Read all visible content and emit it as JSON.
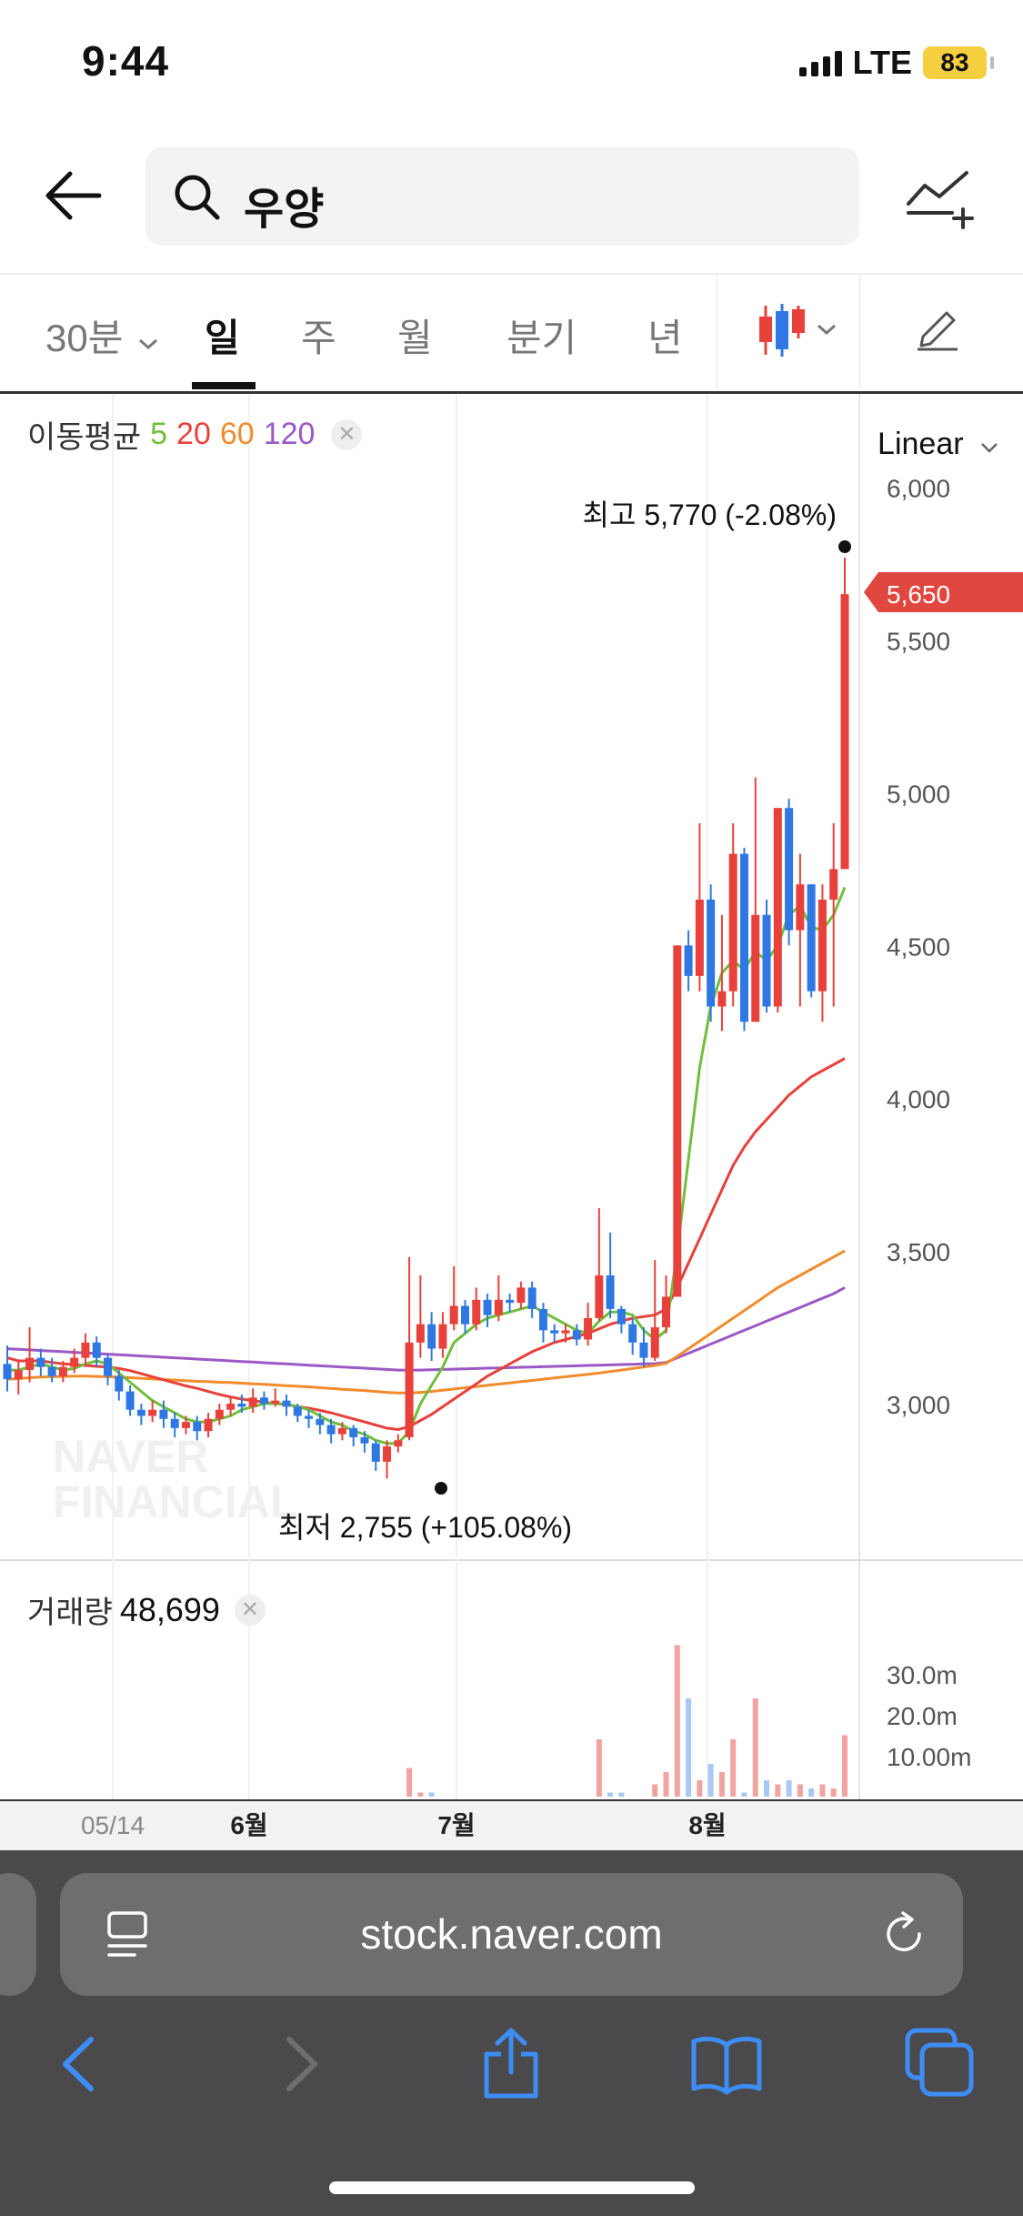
{
  "status": {
    "time": "9:44",
    "network": "LTE",
    "battery": "83"
  },
  "header": {
    "search_text": "우양"
  },
  "tabs": [
    "30분",
    "일",
    "주",
    "월",
    "분기",
    "년"
  ],
  "active_tab": "일",
  "chart": {
    "ma_label": "이동평균",
    "ma_periods": [
      "5",
      "20",
      "60",
      "120"
    ],
    "scale_label": "Linear",
    "high_label": "최고",
    "high_value": "5,770 (-2.08%)",
    "low_label": "최저",
    "low_value": "2,755 (+105.08%)",
    "current_price": "5,650",
    "volume_label": "거래량",
    "volume_value": "48,699",
    "watermark_line1": "NAVER",
    "watermark_line2": "FINANCIAL",
    "y_ticks": [
      "6,000",
      "5,500",
      "5,000",
      "4,500",
      "4,000",
      "3,500",
      "3,000"
    ],
    "vol_ticks": [
      "30.0m",
      "20.0m",
      "10.00m"
    ],
    "x_ticks": [
      "05/14",
      "6월",
      "7월",
      "8월"
    ]
  },
  "browser": {
    "url": "stock.naver.com"
  },
  "colors": {
    "up": "#e8413b",
    "down": "#2f78e3",
    "ma5": "#6fbf3a",
    "ma20": "#e8413b",
    "ma60": "#f08c2c",
    "ma120": "#9b59c6"
  },
  "chart_data": {
    "type": "candlestick",
    "y_scale": "linear",
    "ylim": [
      2700,
      6100
    ],
    "high": 5770,
    "low": 2755,
    "current": 5650,
    "volume": 48699,
    "y_ticks": [
      3000,
      3500,
      4000,
      4500,
      5000,
      5500,
      6000
    ],
    "x_labels": [
      "05/14",
      "6월",
      "7월",
      "8월"
    ],
    "candles": [
      [
        3130,
        3080,
        3190,
        3040
      ],
      [
        3080,
        3110,
        3140,
        3030
      ],
      [
        3110,
        3150,
        3250,
        3070
      ],
      [
        3150,
        3120,
        3180,
        3090
      ],
      [
        3120,
        3090,
        3150,
        3070
      ],
      [
        3090,
        3120,
        3140,
        3070
      ],
      [
        3120,
        3150,
        3180,
        3100
      ],
      [
        3150,
        3200,
        3230,
        3120
      ],
      [
        3200,
        3150,
        3220,
        3120
      ],
      [
        3150,
        3090,
        3160,
        3060
      ],
      [
        3090,
        3040,
        3110,
        3010
      ],
      [
        3040,
        2980,
        3060,
        2960
      ],
      [
        2980,
        2960,
        3000,
        2930
      ],
      [
        2960,
        2980,
        3010,
        2940
      ],
      [
        2980,
        2950,
        3010,
        2920
      ],
      [
        2950,
        2920,
        2970,
        2890
      ],
      [
        2920,
        2940,
        2960,
        2900
      ],
      [
        2940,
        2910,
        2960,
        2880
      ],
      [
        2910,
        2950,
        2970,
        2890
      ],
      [
        2950,
        2980,
        3000,
        2930
      ],
      [
        2980,
        3000,
        3020,
        2960
      ],
      [
        3000,
        2990,
        3030,
        2970
      ],
      [
        2990,
        3020,
        3050,
        2970
      ],
      [
        3020,
        3000,
        3040,
        2980
      ],
      [
        3000,
        3010,
        3050,
        2990
      ],
      [
        3010,
        2990,
        3030,
        2960
      ],
      [
        2990,
        2960,
        3000,
        2940
      ],
      [
        2960,
        2950,
        2980,
        2920
      ],
      [
        2950,
        2930,
        2970,
        2900
      ],
      [
        2930,
        2900,
        2950,
        2870
      ],
      [
        2900,
        2920,
        2940,
        2880
      ],
      [
        2920,
        2890,
        2930,
        2860
      ],
      [
        2890,
        2870,
        2910,
        2840
      ],
      [
        2870,
        2810,
        2880,
        2780
      ],
      [
        2810,
        2860,
        2880,
        2755
      ],
      [
        2860,
        2880,
        2900,
        2840
      ],
      [
        2890,
        3200,
        3480,
        2880
      ],
      [
        3200,
        3260,
        3420,
        3150
      ],
      [
        3260,
        3180,
        3300,
        3140
      ],
      [
        3180,
        3260,
        3300,
        3150
      ],
      [
        3260,
        3320,
        3450,
        3240
      ],
      [
        3320,
        3260,
        3340,
        3230
      ],
      [
        3260,
        3340,
        3380,
        3240
      ],
      [
        3340,
        3290,
        3360,
        3250
      ],
      [
        3290,
        3340,
        3420,
        3270
      ],
      [
        3340,
        3330,
        3360,
        3300
      ],
      [
        3330,
        3380,
        3400,
        3310
      ],
      [
        3380,
        3310,
        3400,
        3280
      ],
      [
        3310,
        3240,
        3330,
        3200
      ],
      [
        3240,
        3230,
        3260,
        3200
      ],
      [
        3230,
        3240,
        3260,
        3200
      ],
      [
        3240,
        3210,
        3260,
        3190
      ],
      [
        3210,
        3280,
        3330,
        3190
      ],
      [
        3280,
        3420,
        3640,
        3270
      ],
      [
        3420,
        3310,
        3560,
        3280
      ],
      [
        3310,
        3260,
        3320,
        3230
      ],
      [
        3260,
        3200,
        3280,
        3160
      ],
      [
        3200,
        3150,
        3250,
        3120
      ],
      [
        3150,
        3250,
        3470,
        3140
      ],
      [
        3250,
        3350,
        3420,
        3230
      ],
      [
        3350,
        4500,
        4500,
        3350
      ],
      [
        4500,
        4400,
        4550,
        4350
      ],
      [
        4400,
        4650,
        4900,
        4350
      ],
      [
        4650,
        4300,
        4700,
        4250
      ],
      [
        4300,
        4350,
        4600,
        4220
      ],
      [
        4350,
        4800,
        4900,
        4300
      ],
      [
        4800,
        4250,
        4820,
        4220
      ],
      [
        4250,
        4600,
        5050,
        4250
      ],
      [
        4600,
        4300,
        4650,
        4280
      ],
      [
        4300,
        4950,
        4950,
        4280
      ],
      [
        4950,
        4550,
        4980,
        4500
      ],
      [
        4550,
        4700,
        4800,
        4300
      ],
      [
        4700,
        4350,
        4700,
        4330
      ],
      [
        4350,
        4650,
        4700,
        4250
      ],
      [
        4650,
        4750,
        4900,
        4300
      ],
      [
        4750,
        5650,
        5770,
        4750
      ]
    ],
    "ma5": [
      3110,
      3110,
      3120,
      3130,
      3120,
      3110,
      3115,
      3130,
      3140,
      3130,
      3100,
      3070,
      3040,
      3010,
      2990,
      2970,
      2950,
      2940,
      2940,
      2950,
      2960,
      2980,
      2990,
      3000,
      3000,
      3000,
      2990,
      2980,
      2960,
      2940,
      2930,
      2910,
      2900,
      2880,
      2870,
      2870,
      2910,
      3000,
      3060,
      3120,
      3200,
      3230,
      3260,
      3280,
      3290,
      3300,
      3310,
      3320,
      3300,
      3280,
      3260,
      3240,
      3230,
      3270,
      3300,
      3300,
      3290,
      3240,
      3210,
      3240,
      3500,
      3800,
      4100,
      4300,
      4410,
      4450,
      4420,
      4480,
      4450,
      4500,
      4600,
      4630,
      4560,
      4550,
      4600,
      4690
    ],
    "ma20": [
      3150,
      3140,
      3140,
      3140,
      3135,
      3130,
      3128,
      3125,
      3122,
      3120,
      3115,
      3108,
      3098,
      3088,
      3078,
      3068,
      3058,
      3050,
      3040,
      3030,
      3022,
      3015,
      3010,
      3005,
      3000,
      2998,
      2990,
      2985,
      2978,
      2970,
      2960,
      2950,
      2940,
      2930,
      2920,
      2915,
      2925,
      2945,
      2965,
      2990,
      3015,
      3040,
      3065,
      3090,
      3110,
      3130,
      3150,
      3170,
      3185,
      3200,
      3210,
      3220,
      3230,
      3245,
      3260,
      3270,
      3280,
      3285,
      3290,
      3310,
      3380,
      3460,
      3540,
      3620,
      3700,
      3780,
      3840,
      3890,
      3930,
      3970,
      4010,
      4040,
      4070,
      4090,
      4110,
      4130
    ],
    "ma60": [
      3080,
      3082,
      3085,
      3087,
      3088,
      3089,
      3090,
      3090,
      3089,
      3088,
      3087,
      3085,
      3083,
      3081,
      3079,
      3077,
      3075,
      3073,
      3072,
      3070,
      3069,
      3067,
      3065,
      3063,
      3061,
      3059,
      3057,
      3055,
      3052,
      3050,
      3047,
      3045,
      3043,
      3040,
      3037,
      3035,
      3035,
      3037,
      3040,
      3044,
      3048,
      3052,
      3056,
      3060,
      3064,
      3068,
      3072,
      3076,
      3080,
      3084,
      3088,
      3092,
      3096,
      3100,
      3105,
      3110,
      3115,
      3120,
      3125,
      3132,
      3155,
      3180,
      3205,
      3230,
      3255,
      3280,
      3305,
      3330,
      3355,
      3380,
      3400,
      3420,
      3440,
      3460,
      3480,
      3500
    ],
    "ma120": [
      3180,
      3178,
      3176,
      3174,
      3172,
      3170,
      3168,
      3166,
      3164,
      3162,
      3160,
      3158,
      3156,
      3154,
      3152,
      3150,
      3148,
      3146,
      3144,
      3142,
      3140,
      3138,
      3136,
      3134,
      3132,
      3130,
      3128,
      3126,
      3124,
      3122,
      3120,
      3118,
      3116,
      3114,
      3112,
      3110,
      3110,
      3110,
      3111,
      3112,
      3113,
      3114,
      3115,
      3116,
      3117,
      3118,
      3119,
      3120,
      3121,
      3122,
      3123,
      3124,
      3125,
      3126,
      3127,
      3128,
      3129,
      3130,
      3131,
      3135,
      3150,
      3165,
      3180,
      3195,
      3210,
      3225,
      3240,
      3255,
      3270,
      3285,
      3300,
      3315,
      3330,
      3345,
      3360,
      3380
    ],
    "volume_ylim": [
      0,
      40
    ],
    "volume_m": [
      0,
      0,
      0,
      0,
      0,
      0,
      0,
      0,
      0,
      0,
      0,
      0,
      0,
      0,
      0,
      0,
      0,
      0,
      0,
      0,
      0,
      0,
      0,
      0,
      0,
      0,
      0,
      0,
      0,
      0,
      0,
      0,
      0,
      0,
      0,
      0,
      7,
      1,
      1,
      0,
      0,
      0,
      0,
      0,
      0,
      0,
      0,
      0,
      0,
      0,
      0,
      0,
      0,
      14,
      1,
      1,
      0,
      0,
      3,
      6,
      37,
      24,
      4,
      8,
      6,
      14,
      1,
      24,
      4,
      3,
      4,
      3,
      2,
      3,
      2,
      15
    ]
  }
}
